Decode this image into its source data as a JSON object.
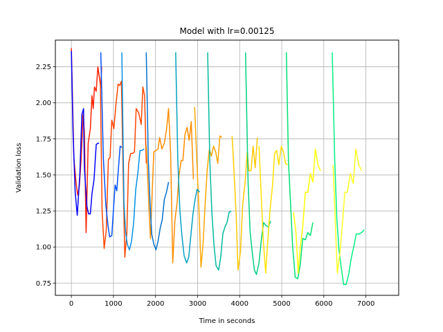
{
  "chart_data": {
    "type": "line",
    "title": "Model with lr=0.00125",
    "xlabel": "Time in seconds",
    "ylabel": "Validation loss",
    "xlim": [
      -380,
      7780
    ],
    "ylim": [
      0.665,
      2.435
    ],
    "xticks": [
      0,
      1000,
      2000,
      3000,
      4000,
      5000,
      6000,
      7000
    ],
    "yticks": [
      0.75,
      1.0,
      1.25,
      1.5,
      1.75,
      2.0,
      2.25
    ],
    "xtick_labels": [
      "0",
      "1000",
      "2000",
      "3000",
      "4000",
      "5000",
      "6000",
      "7000"
    ],
    "ytick_labels": [
      "0.75",
      "1.00",
      "1.25",
      "1.50",
      "1.75",
      "2.00",
      "2.25"
    ],
    "grid": true,
    "series": [
      {
        "color": "#ff2000",
        "points": [
          [
            0,
            2.38
          ],
          [
            60,
            1.62
          ],
          [
            110,
            1.45
          ],
          [
            150,
            1.36
          ],
          [
            190,
            1.42
          ],
          [
            230,
            1.6
          ],
          [
            280,
            1.92
          ],
          [
            310,
            1.8
          ],
          [
            350,
            1.1
          ],
          [
            400,
            1.72
          ],
          [
            450,
            1.82
          ],
          [
            490,
            2.05
          ],
          [
            520,
            1.96
          ],
          [
            550,
            2.11
          ],
          [
            590,
            2.08
          ],
          [
            630,
            2.25
          ],
          [
            700,
            2.11
          ],
          [
            720,
            2.25
          ]
        ]
      },
      {
        "color": "#0000ff",
        "points": [
          [
            0,
            2.36
          ],
          [
            40,
            1.8
          ],
          [
            90,
            1.38
          ],
          [
            140,
            1.22
          ],
          [
            200,
            1.5
          ],
          [
            250,
            1.92
          ],
          [
            290,
            1.96
          ],
          [
            310,
            1.55
          ],
          [
            370,
            1.28
          ],
          [
            410,
            1.23
          ],
          [
            450,
            1.23
          ],
          [
            490,
            1.37
          ],
          [
            540,
            1.47
          ],
          [
            590,
            1.71
          ],
          [
            630,
            1.72
          ],
          [
            660,
            1.72
          ]
        ]
      },
      {
        "color": "#ff4500",
        "points": [
          [
            690,
            2.14
          ],
          [
            730,
            1.25
          ],
          [
            780,
            0.99
          ],
          [
            830,
            1.12
          ],
          [
            880,
            1.61
          ],
          [
            920,
            1.62
          ],
          [
            960,
            1.88
          ],
          [
            1010,
            1.82
          ],
          [
            1060,
            1.99
          ],
          [
            1110,
            2.13
          ],
          [
            1150,
            2.12
          ],
          [
            1190,
            2.15
          ],
          [
            1240,
            1.35
          ],
          [
            1270,
            0.93
          ],
          [
            1320,
            1.1
          ],
          [
            1360,
            1.58
          ],
          [
            1410,
            1.65
          ],
          [
            1460,
            1.65
          ],
          [
            1500,
            1.66
          ],
          [
            1540,
            1.96
          ],
          [
            1600,
            1.93
          ],
          [
            1660,
            1.85
          ],
          [
            1700,
            2.11
          ],
          [
            1740,
            2.05
          ],
          [
            1780,
            1.58
          ]
        ]
      },
      {
        "color": "#0050ff",
        "points": [
          [
            700,
            2.35
          ],
          [
            760,
            1.62
          ],
          [
            820,
            1.29
          ],
          [
            870,
            1.15
          ],
          [
            910,
            1.07
          ],
          [
            960,
            1.08
          ],
          [
            1000,
            1.26
          ],
          [
            1040,
            1.43
          ],
          [
            1080,
            1.39
          ],
          [
            1120,
            1.55
          ],
          [
            1160,
            1.7
          ],
          [
            1200,
            1.69
          ]
        ]
      },
      {
        "color": "#ff8c00",
        "points": [
          [
            1780,
            1.7
          ],
          [
            1820,
            1.45
          ],
          [
            1850,
            1.24
          ],
          [
            1880,
            1.06
          ],
          [
            1920,
            1.37
          ],
          [
            1960,
            1.66
          ],
          [
            2010,
            1.67
          ],
          [
            2060,
            1.68
          ],
          [
            2100,
            1.76
          ],
          [
            2150,
            1.68
          ],
          [
            2210,
            1.72
          ],
          [
            2260,
            1.81
          ],
          [
            2310,
            1.96
          ],
          [
            2360,
            1.65
          ],
          [
            2410,
            0.89
          ],
          [
            2460,
            1.18
          ],
          [
            2510,
            1.3
          ],
          [
            2560,
            1.5
          ],
          [
            2610,
            1.6
          ],
          [
            2650,
            1.6
          ],
          [
            2700,
            1.78
          ],
          [
            2750,
            1.83
          ],
          [
            2800,
            1.74
          ],
          [
            2850,
            1.87
          ],
          [
            2900,
            1.47
          ]
        ]
      },
      {
        "color": "#0090e0",
        "points": [
          [
            1200,
            2.35
          ],
          [
            1250,
            1.3
          ],
          [
            1290,
            1.1
          ],
          [
            1330,
            1.02
          ],
          [
            1380,
            0.98
          ],
          [
            1430,
            1.04
          ],
          [
            1480,
            1.17
          ],
          [
            1530,
            1.4
          ],
          [
            1580,
            1.51
          ],
          [
            1630,
            1.67
          ],
          [
            1680,
            1.67
          ],
          [
            1730,
            1.68
          ]
        ]
      },
      {
        "color": "#ffa500",
        "points": [
          [
            2930,
            1.97
          ],
          [
            2990,
            1.55
          ],
          [
            3040,
            1.21
          ],
          [
            3080,
            0.86
          ],
          [
            3130,
            1.02
          ],
          [
            3180,
            1.3
          ],
          [
            3230,
            1.54
          ],
          [
            3280,
            1.68
          ],
          [
            3330,
            1.63
          ],
          [
            3380,
            1.7
          ],
          [
            3430,
            1.66
          ],
          [
            3480,
            1.58
          ],
          [
            3530,
            1.77
          ],
          [
            3580,
            1.76
          ]
        ]
      },
      {
        "color": "#0070d0",
        "points": [
          [
            1780,
            2.35
          ],
          [
            1830,
            1.6
          ],
          [
            1870,
            1.3
          ],
          [
            1910,
            1.09
          ],
          [
            1960,
            1.02
          ],
          [
            2010,
            0.98
          ],
          [
            2060,
            1.04
          ],
          [
            2110,
            1.13
          ],
          [
            2160,
            1.19
          ],
          [
            2210,
            1.33
          ],
          [
            2260,
            1.38
          ],
          [
            2310,
            1.45
          ]
        ]
      },
      {
        "color": "#00a0c0",
        "points": [
          [
            2480,
            2.35
          ],
          [
            2530,
            1.6
          ],
          [
            2580,
            1.25
          ],
          [
            2630,
            1.07
          ],
          [
            2680,
            0.94
          ],
          [
            2740,
            0.89
          ],
          [
            2790,
            0.93
          ],
          [
            2840,
            1.08
          ],
          [
            2890,
            1.23
          ],
          [
            2940,
            1.33
          ],
          [
            2990,
            1.4
          ],
          [
            3050,
            1.38
          ]
        ]
      },
      {
        "color": "#00b8a0",
        "points": [
          [
            3240,
            2.35
          ],
          [
            3290,
            1.6
          ],
          [
            3340,
            1.24
          ],
          [
            3390,
            1.01
          ],
          [
            3440,
            0.87
          ],
          [
            3500,
            0.84
          ],
          [
            3550,
            0.93
          ],
          [
            3600,
            1.09
          ],
          [
            3650,
            1.14
          ],
          [
            3700,
            1.17
          ],
          [
            3750,
            1.24
          ],
          [
            3800,
            1.25
          ]
        ]
      },
      {
        "color": "#ffc800",
        "points": [
          [
            3820,
            1.77
          ],
          [
            3860,
            1.56
          ],
          [
            3920,
            1.2
          ],
          [
            3960,
            0.84
          ],
          [
            4020,
            0.97
          ],
          [
            4070,
            1.29
          ],
          [
            4130,
            1.45
          ],
          [
            4180,
            1.66
          ],
          [
            4220,
            1.53
          ],
          [
            4270,
            1.53
          ],
          [
            4320,
            1.7
          ],
          [
            4370,
            1.55
          ],
          [
            4420,
            1.76
          ]
        ]
      },
      {
        "color": "#00d080",
        "points": [
          [
            4140,
            2.35
          ],
          [
            4200,
            1.45
          ],
          [
            4250,
            1.1
          ],
          [
            4300,
            0.96
          ],
          [
            4350,
            0.84
          ],
          [
            4400,
            0.81
          ],
          [
            4460,
            0.89
          ],
          [
            4520,
            1.06
          ],
          [
            4570,
            1.17
          ],
          [
            4620,
            1.15
          ],
          [
            4680,
            1.14
          ],
          [
            4740,
            1.18
          ]
        ]
      },
      {
        "color": "#ffe000",
        "points": [
          [
            4460,
            1.7
          ],
          [
            4510,
            1.38
          ],
          [
            4560,
            1.05
          ],
          [
            4620,
            0.82
          ],
          [
            4670,
            1.05
          ],
          [
            4720,
            1.25
          ],
          [
            4780,
            1.42
          ],
          [
            4830,
            1.65
          ],
          [
            4880,
            1.67
          ],
          [
            4930,
            1.57
          ],
          [
            4990,
            1.7
          ],
          [
            5040,
            1.66
          ],
          [
            5090,
            1.58
          ],
          [
            5140,
            1.57
          ]
        ]
      },
      {
        "color": "#00e070",
        "points": [
          [
            5110,
            2.35
          ],
          [
            5160,
            1.6
          ],
          [
            5210,
            1.3
          ],
          [
            5260,
            1.0
          ],
          [
            5320,
            0.79
          ],
          [
            5380,
            0.78
          ],
          [
            5440,
            0.88
          ],
          [
            5500,
            1.06
          ],
          [
            5560,
            1.05
          ],
          [
            5620,
            1.1
          ],
          [
            5680,
            1.08
          ],
          [
            5740,
            1.17
          ]
        ]
      },
      {
        "color": "#ffff00",
        "points": [
          [
            5280,
            1.24
          ],
          [
            5340,
            1.1
          ],
          [
            5390,
            0.82
          ],
          [
            5440,
            1.0
          ],
          [
            5500,
            1.14
          ],
          [
            5560,
            1.38
          ],
          [
            5620,
            1.38
          ],
          [
            5680,
            1.51
          ],
          [
            5740,
            1.45
          ],
          [
            5800,
            1.68
          ],
          [
            5860,
            1.57
          ],
          [
            5920,
            1.53
          ]
        ]
      },
      {
        "color": "#00f080",
        "points": [
          [
            6200,
            2.35
          ],
          [
            6260,
            1.6
          ],
          [
            6310,
            1.2
          ],
          [
            6360,
            0.98
          ],
          [
            6410,
            0.87
          ],
          [
            6470,
            0.74
          ],
          [
            6530,
            0.74
          ],
          [
            6590,
            0.81
          ],
          [
            6650,
            0.92
          ],
          [
            6710,
            1.0
          ],
          [
            6770,
            1.09
          ],
          [
            6830,
            1.09
          ],
          [
            6900,
            1.1
          ],
          [
            6960,
            1.12
          ]
        ]
      },
      {
        "color": "#ffff20",
        "points": [
          [
            6220,
            1.57
          ],
          [
            6270,
            1.2
          ],
          [
            6320,
            0.82
          ],
          [
            6380,
            0.95
          ],
          [
            6440,
            1.15
          ],
          [
            6500,
            1.38
          ],
          [
            6560,
            1.38
          ],
          [
            6630,
            1.51
          ],
          [
            6700,
            1.44
          ],
          [
            6760,
            1.68
          ],
          [
            6830,
            1.57
          ],
          [
            6900,
            1.53
          ]
        ]
      }
    ]
  }
}
